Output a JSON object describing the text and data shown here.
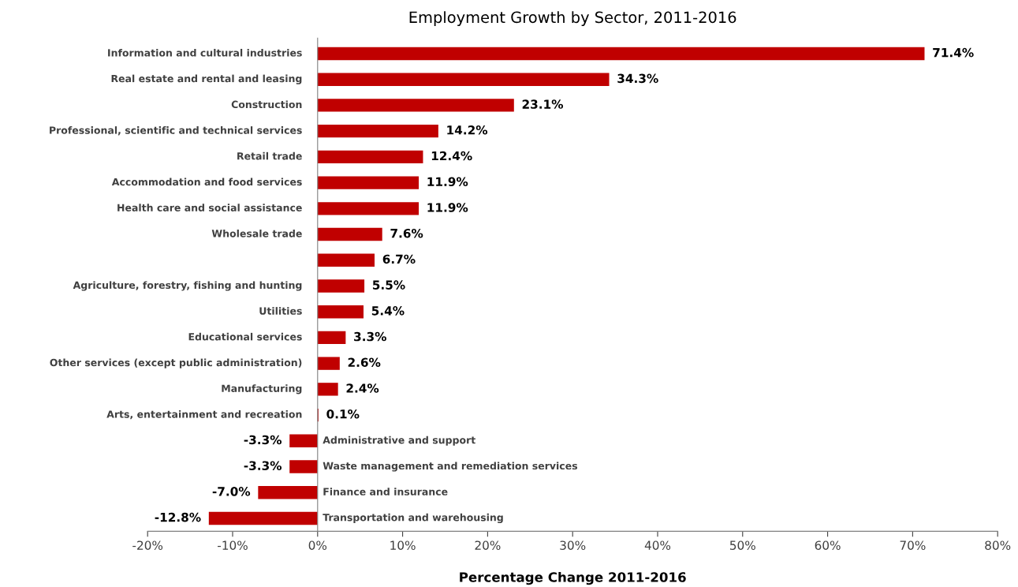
{
  "chart_data": {
    "type": "bar",
    "orientation": "horizontal",
    "title": "Employment Growth by Sector, 2011-2016",
    "xlabel": "Percentage Change 2011-2016",
    "categories": [
      "Information and cultural industries",
      "Real estate and rental and leasing",
      "Construction",
      "Professional, scientific and technical services",
      "Retail trade",
      "Accommodation and food services",
      "Health care and social assistance",
      "Wholesale trade",
      null,
      "Agriculture, forestry, fishing and hunting",
      "Utilities",
      "Educational services",
      "Other services (except public administration)",
      "Manufacturing",
      "Arts, entertainment and recreation",
      "Administrative and support",
      "Waste management and remediation services",
      "Finance and insurance",
      "Transportation and warehousing"
    ],
    "values": [
      71.4,
      34.3,
      23.1,
      14.2,
      12.4,
      11.9,
      11.9,
      7.6,
      6.7,
      5.5,
      5.4,
      3.3,
      2.6,
      2.4,
      0.1,
      -3.3,
      -3.3,
      -7.0,
      -12.8
    ],
    "value_labels": [
      "71.4%",
      "34.3%",
      "23.1%",
      "14.2%",
      "12.4%",
      "11.9%",
      "11.9%",
      "7.6%",
      "6.7%",
      "5.5%",
      "5.4%",
      "3.3%",
      "2.6%",
      "2.4%",
      "0.1%",
      "-3.3%",
      "-3.3%",
      "-7.0%",
      "-12.8%"
    ],
    "color": "#c00000",
    "xlim": [
      -20,
      80
    ],
    "xticks": [
      {
        "value": -20,
        "label": "-20%"
      },
      {
        "value": -10,
        "label": "-10%"
      },
      {
        "value": 0,
        "label": "0%"
      },
      {
        "value": 10,
        "label": "10%"
      },
      {
        "value": 20,
        "label": "20%"
      },
      {
        "value": 30,
        "label": "30%"
      },
      {
        "value": 40,
        "label": "40%"
      },
      {
        "value": 50,
        "label": "50%"
      },
      {
        "value": 60,
        "label": "60%"
      },
      {
        "value": 70,
        "label": "70%"
      },
      {
        "value": 80,
        "label": "80%"
      }
    ],
    "grid": false,
    "legend": false
  }
}
